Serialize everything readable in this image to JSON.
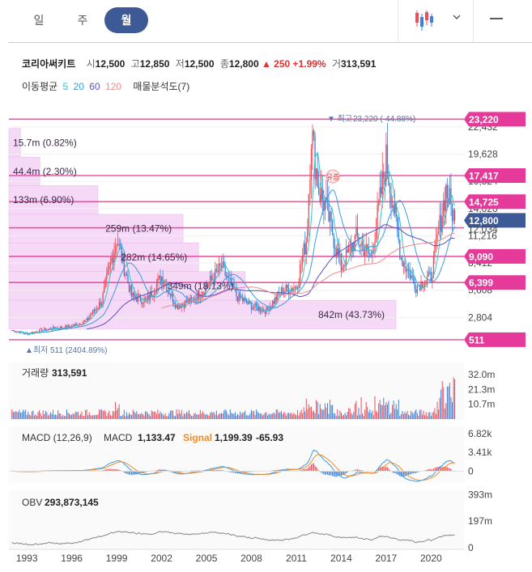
{
  "tabs": [
    {
      "label": "일",
      "active": false
    },
    {
      "label": "주",
      "active": false
    },
    {
      "label": "월",
      "active": true
    }
  ],
  "quote": {
    "name": "코리아써키트",
    "open_label": "시",
    "open": "12,500",
    "high_label": "고",
    "high": "12,850",
    "low_label": "저",
    "low": "12,500",
    "close_label": "종",
    "close": "12,800",
    "change": "▲ 250",
    "change_pct": "+1.99%",
    "volume_label": "거",
    "volume": "313,591"
  },
  "indicators": {
    "label": "이동평균",
    "ma": [
      {
        "v": "5",
        "color": "#35c4c9"
      },
      {
        "v": "20",
        "color": "#3a9be0"
      },
      {
        "v": "60",
        "color": "#5b4fc4"
      },
      {
        "v": "120",
        "color": "#f08a8a"
      }
    ],
    "volume_profile": "매물분석도(7)"
  },
  "chart_data": [
    {
      "type": "candlestick",
      "panel": "price",
      "ylim": [
        0,
        24000
      ],
      "y_ticks": [
        "22,432",
        "19,628",
        "16,824",
        "14,020",
        "11,216",
        "8,412",
        "5,608",
        "2,804"
      ],
      "x_ticks": [
        "1993",
        "1996",
        "1999",
        "2002",
        "2005",
        "2008",
        "2011",
        "2014",
        "2017",
        "2020"
      ],
      "xlim": [
        1991.8,
        2022.2
      ],
      "price_series": [
        [
          1992,
          1500
        ],
        [
          1993,
          1100
        ],
        [
          1994,
          1500
        ],
        [
          1995,
          1700
        ],
        [
          1996,
          1900
        ],
        [
          1997,
          2500
        ],
        [
          1998,
          4500
        ],
        [
          1999,
          11000
        ],
        [
          1999.5,
          8000
        ],
        [
          2000,
          5000
        ],
        [
          2001,
          4500
        ],
        [
          2002,
          7000
        ],
        [
          2003,
          4000
        ],
        [
          2004,
          4500
        ],
        [
          2005,
          6000
        ],
        [
          2006,
          8000
        ],
        [
          2007,
          5000
        ],
        [
          2008,
          4000
        ],
        [
          2009,
          3500
        ],
        [
          2010,
          5500
        ],
        [
          2011,
          6000
        ],
        [
          2011.7,
          11000
        ],
        [
          2012,
          22000
        ],
        [
          2012.5,
          16000
        ],
        [
          2013,
          14000
        ],
        [
          2014,
          8000
        ],
        [
          2015,
          11000
        ],
        [
          2016,
          9000
        ],
        [
          2017,
          19000
        ],
        [
          2018,
          9000
        ],
        [
          2019,
          6000
        ],
        [
          2020,
          7000
        ],
        [
          2021,
          16000
        ],
        [
          2021.6,
          12800
        ]
      ],
      "max_label": "▼ 최고",
      "max_value": "23,220 (-44.88%)",
      "min_label": "▲최저",
      "min_value": "511 (2404.89%)",
      "volume_profile": [
        {
          "label": "15.7m (0.82%)",
          "price": 20800,
          "frac": 0.03
        },
        {
          "label": "44.4m (2.30%)",
          "price": 17850,
          "frac": 0.08
        },
        {
          "label": "133m (6.90%)",
          "price": 14900,
          "frac": 0.23
        },
        {
          "label": "259m (13.47%)",
          "price": 11950,
          "frac": 0.45
        },
        {
          "label": "282m (14.65%)",
          "price": 9000,
          "frac": 0.49
        },
        {
          "label": "349m (18.13%)",
          "price": 6050,
          "frac": 0.61
        },
        {
          "label": "842m (43.73%)",
          "price": 3100,
          "frac": 1.0
        }
      ],
      "price_levels": [
        {
          "label": "23,220",
          "value": 23220
        },
        {
          "label": "17,417",
          "value": 17417
        },
        {
          "label": "14,725",
          "value": 14725
        },
        {
          "label": "12,034",
          "value": 12034
        },
        {
          "label": "9,090",
          "value": 9090
        },
        {
          "label": "6,399",
          "value": 6399
        },
        {
          "label": "511",
          "value": 511
        }
      ],
      "current": {
        "label": "12,800",
        "value": 12800
      },
      "badge": "유증"
    },
    {
      "type": "bar",
      "panel": "volume",
      "title": "거래량",
      "value": "313,591",
      "y_ticks": [
        "32.0m",
        "21.3m",
        "10.7m"
      ],
      "ylim": [
        0,
        40
      ]
    },
    {
      "type": "line",
      "panel": "macd",
      "title": "MACD (12,26,9)",
      "macd_label": "MACD",
      "macd_value": "1,133.47",
      "signal_label": "Signal",
      "signal_value": "1,199.39",
      "hist_value": "-65.93",
      "y_ticks": [
        "6.82k",
        "3.41k",
        "0"
      ],
      "ylim": [
        -2,
        8
      ]
    },
    {
      "type": "line",
      "panel": "obv",
      "title": "OBV",
      "value": "293,873,145",
      "y_ticks": [
        "393m",
        "197m",
        "0"
      ],
      "ylim": [
        0,
        420
      ]
    }
  ],
  "colors": {
    "up": "#e8505b",
    "down": "#3b82d8",
    "level": "#e53a9a",
    "current": "#3d5a96",
    "profile": "#f5d9f7"
  }
}
